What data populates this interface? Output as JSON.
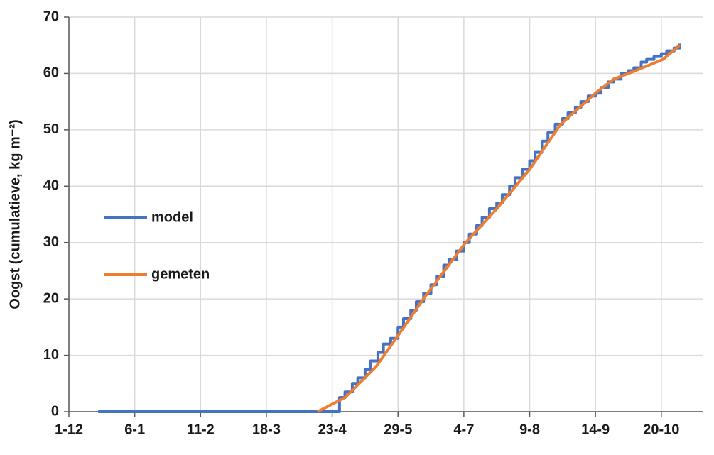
{
  "chart_data": {
    "type": "line",
    "y_label": "Oogst (cumulatieve, kg m⁻²)",
    "xlim": [
      0,
      347
    ],
    "ylim": [
      0,
      70
    ],
    "xticks": [
      {
        "value": 0,
        "label": "1-12"
      },
      {
        "value": 36,
        "label": "6-1"
      },
      {
        "value": 72,
        "label": "11-2"
      },
      {
        "value": 108,
        "label": "18-3"
      },
      {
        "value": 144,
        "label": "23-4"
      },
      {
        "value": 180,
        "label": "29-5"
      },
      {
        "value": 216,
        "label": "4-7"
      },
      {
        "value": 252,
        "label": "9-8"
      },
      {
        "value": 288,
        "label": "14-9"
      },
      {
        "value": 324,
        "label": "20-10"
      }
    ],
    "yticks": [
      0,
      10,
      20,
      30,
      40,
      50,
      60,
      70
    ],
    "grid": true,
    "legend": "center-left",
    "series": [
      {
        "name": "model",
        "color": "#4472c4",
        "step": true,
        "x": [
          16,
          145,
          148,
          151,
          155,
          158,
          162,
          165,
          169,
          172,
          176,
          180,
          183,
          187,
          190,
          194,
          198,
          201,
          205,
          208,
          212,
          216,
          219,
          223,
          226,
          230,
          234,
          237,
          241,
          244,
          248,
          252,
          255,
          259,
          262,
          266,
          270,
          273,
          277,
          280,
          284,
          288,
          291,
          295,
          298,
          302,
          306,
          309,
          313,
          316,
          320,
          324,
          327,
          331,
          334
        ],
        "values": [
          0,
          0,
          2.5,
          3.5,
          5,
          6,
          7.5,
          9,
          10.5,
          12,
          13,
          15,
          16.5,
          18,
          19.5,
          21,
          22.5,
          24,
          26,
          27,
          28.5,
          30,
          31.5,
          33,
          34.5,
          36,
          37,
          38.5,
          40,
          41.5,
          43,
          44.5,
          46,
          48,
          49.5,
          51,
          52,
          53,
          54,
          55,
          56,
          56.5,
          57.5,
          58.5,
          59,
          60,
          60.5,
          61,
          62,
          62.5,
          63,
          63.5,
          64,
          64.5,
          65.3
        ]
      },
      {
        "name": "gemeten",
        "color": "#ed7d31",
        "step": false,
        "x": [
          136,
          151,
          168,
          180,
          195,
          217,
          234,
          252,
          269,
          288,
          298,
          310,
          325,
          334
        ],
        "values": [
          0,
          2.5,
          8,
          13.5,
          20.5,
          30,
          36,
          43,
          51,
          56.5,
          59,
          60.5,
          62.5,
          65
        ]
      }
    ]
  }
}
